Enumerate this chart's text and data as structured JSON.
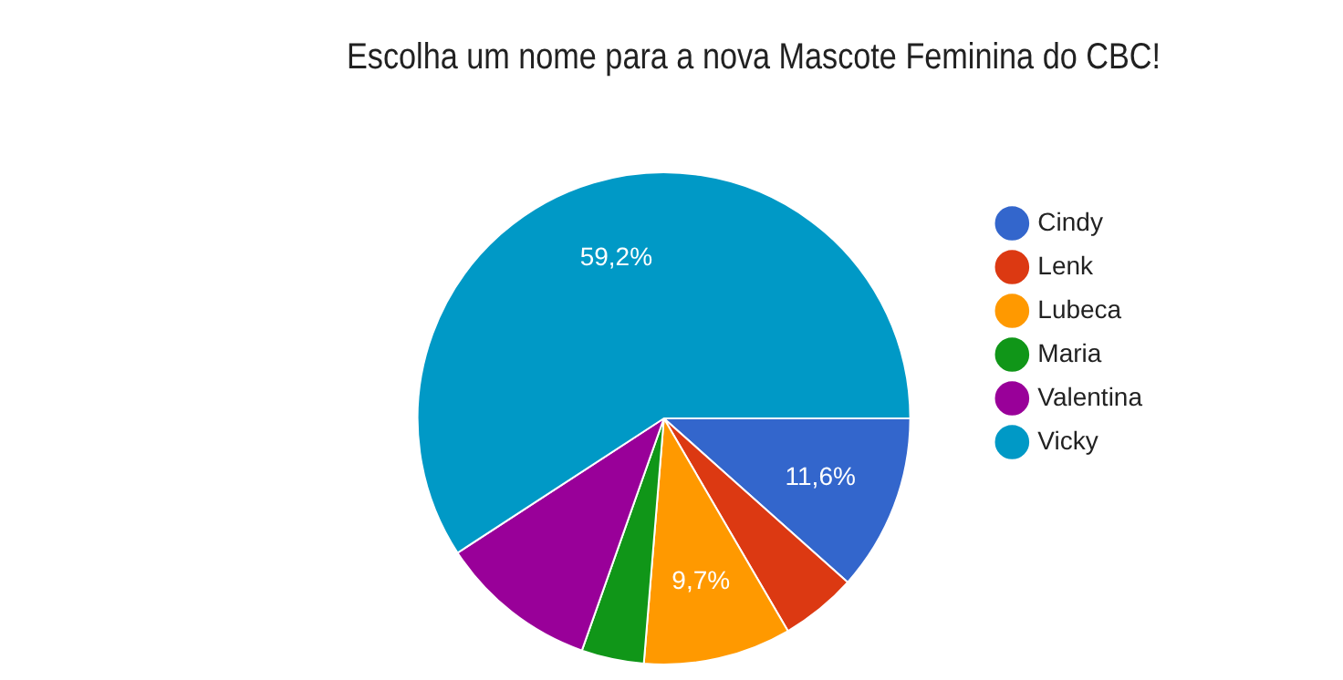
{
  "chart_data": {
    "type": "pie",
    "title": "Escolha um nome para a nova Mascote Feminina do CBC!",
    "categories": [
      "Cindy",
      "Lenk",
      "Lubeca",
      "Maria",
      "Valentina",
      "Vicky"
    ],
    "values": [
      11.6,
      5.0,
      9.7,
      4.1,
      10.4,
      59.2
    ],
    "colors": [
      "#3366cc",
      "#dc3912",
      "#ff9900",
      "#109618",
      "#990099",
      "#0099c6"
    ],
    "value_labels": [
      "11,6%",
      null,
      "9,7%",
      null,
      null,
      "59,2%"
    ],
    "legend": "right"
  }
}
